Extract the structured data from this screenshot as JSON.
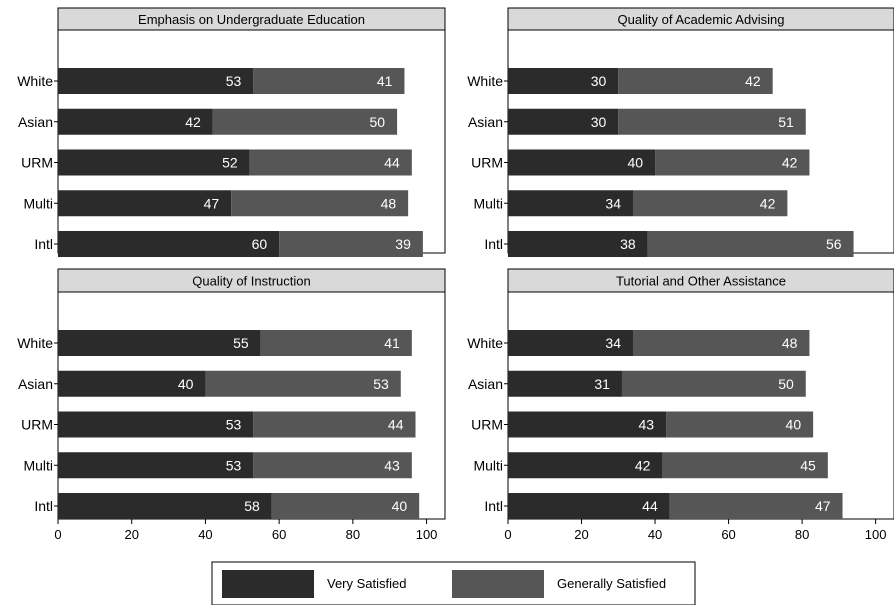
{
  "colors": {
    "very_satisfied": "#2b2b2b",
    "generally_satisfied": "#565656",
    "title_bar": "#d9d9d9",
    "frame": "#000000"
  },
  "legend": {
    "placement": "bottom-center",
    "items": [
      "Very Satisfied",
      "Generally Satisfied"
    ]
  },
  "chart_data": [
    {
      "type": "bar",
      "orientation": "horizontal",
      "stacked": true,
      "title": "Emphasis on Undergraduate Education",
      "categories": [
        "White",
        "Asian",
        "URM",
        "Multi",
        "Intl"
      ],
      "series": [
        {
          "name": "Very Satisfied",
          "values": [
            53,
            42,
            52,
            47,
            60
          ]
        },
        {
          "name": "Generally Satisfied",
          "values": [
            41,
            50,
            44,
            48,
            39
          ]
        }
      ],
      "xlim": [
        0,
        105
      ],
      "xticks": [
        "0",
        "20",
        "40",
        "60",
        "80",
        "100"
      ]
    },
    {
      "type": "bar",
      "orientation": "horizontal",
      "stacked": true,
      "title": "Quality of Academic Advising",
      "categories": [
        "White",
        "Asian",
        "URM",
        "Multi",
        "Intl"
      ],
      "series": [
        {
          "name": "Very Satisfied",
          "values": [
            30,
            30,
            40,
            34,
            38
          ]
        },
        {
          "name": "Generally Satisfied",
          "values": [
            42,
            51,
            42,
            42,
            56
          ]
        }
      ],
      "xlim": [
        0,
        105
      ],
      "xticks": [
        "0",
        "20",
        "40",
        "60",
        "80",
        "100"
      ]
    },
    {
      "type": "bar",
      "orientation": "horizontal",
      "stacked": true,
      "title": "Quality of Instruction",
      "categories": [
        "White",
        "Asian",
        "URM",
        "Multi",
        "Intl"
      ],
      "series": [
        {
          "name": "Very Satisfied",
          "values": [
            55,
            40,
            53,
            53,
            58
          ]
        },
        {
          "name": "Generally Satisfied",
          "values": [
            41,
            53,
            44,
            43,
            40
          ]
        }
      ],
      "xlim": [
        0,
        105
      ],
      "xticks": [
        "0",
        "20",
        "40",
        "60",
        "80",
        "100"
      ]
    },
    {
      "type": "bar",
      "orientation": "horizontal",
      "stacked": true,
      "title": "Tutorial and Other Assistance",
      "categories": [
        "White",
        "Asian",
        "URM",
        "Multi",
        "Intl"
      ],
      "series": [
        {
          "name": "Very Satisfied",
          "values": [
            34,
            31,
            43,
            42,
            44
          ]
        },
        {
          "name": "Generally Satisfied",
          "values": [
            48,
            50,
            40,
            45,
            47
          ]
        }
      ],
      "xlim": [
        0,
        105
      ],
      "xticks": [
        "0",
        "20",
        "40",
        "60",
        "80",
        "100"
      ]
    }
  ]
}
